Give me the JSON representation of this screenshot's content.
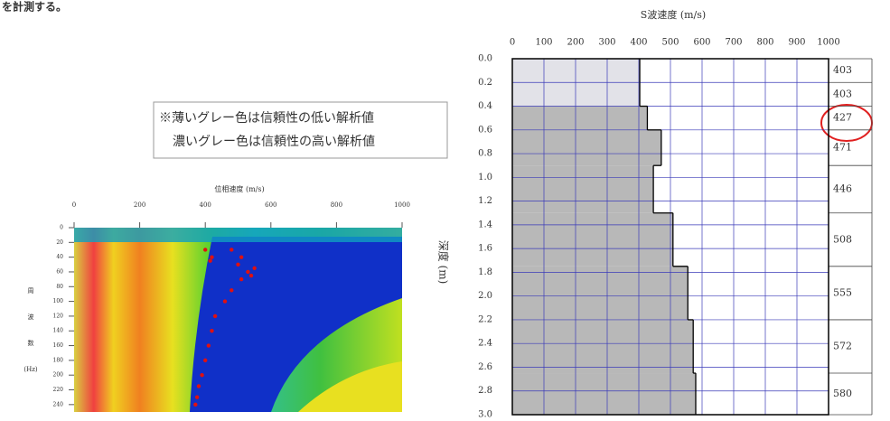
{
  "page": {
    "header_text": "を計測する。",
    "note": [
      "※薄いグレー色は信頼性の低い解析値",
      "濃いグレー色は信頼性の高い解析値"
    ]
  },
  "chart_data": [
    {
      "type": "scatter",
      "title": "位相速度 (m/s)",
      "ylabel": [
        "周",
        "波",
        "数",
        "(Hz)"
      ],
      "x": [
        400,
        415,
        420,
        480,
        510,
        500,
        550,
        530,
        540,
        510,
        480,
        460,
        430,
        420,
        410,
        400,
        390,
        380,
        375,
        370
      ],
      "values": [
        30,
        45,
        40,
        30,
        40,
        50,
        55,
        60,
        65,
        70,
        85,
        100,
        120,
        140,
        160,
        180,
        200,
        215,
        230,
        240
      ],
      "color": "#e01010",
      "xlim": [
        0,
        1000
      ],
      "xticks": [
        0,
        200,
        400,
        600,
        800,
        1000
      ],
      "ylim": [
        0,
        250
      ],
      "yticks": [
        0,
        20,
        40,
        60,
        80,
        100,
        120,
        140,
        160,
        180,
        200,
        220,
        240
      ]
    },
    {
      "type": "profile",
      "title": "S波速度 (m/s)",
      "ylabel": "深度 (m)",
      "depth_bounds": [
        0,
        0.2,
        0.4,
        0.6,
        0.9,
        1.3,
        1.75,
        2.2,
        2.65,
        3.0
      ],
      "values": [
        403,
        403,
        427,
        471,
        446,
        508,
        555,
        572,
        580
      ],
      "colors": [
        "#e2e2e8",
        "#e2e2e8",
        "#b8b8b8",
        "#b8b8b8",
        "#b8b8b8",
        "#b8b8b8",
        "#b8b8b8",
        "#b8b8b8",
        "#b8b8b8"
      ],
      "xlim": [
        0,
        1000
      ],
      "xticks": [
        0,
        100,
        200,
        300,
        400,
        500,
        600,
        700,
        800,
        900,
        1000
      ],
      "ylim": [
        0,
        3.0
      ],
      "yticks": [
        {
          "value": 0,
          "label": "0.0"
        },
        {
          "value": 0.2,
          "label": "0.2"
        },
        {
          "value": 0.4,
          "label": "0.4"
        },
        {
          "value": 0.6,
          "label": "0.6"
        },
        {
          "value": 0.8,
          "label": "0.8"
        },
        {
          "value": 1.0,
          "label": "1.0"
        },
        {
          "value": 1.2,
          "label": "1.2"
        },
        {
          "value": 1.4,
          "label": "1.4"
        },
        {
          "value": 1.6,
          "label": "1.6"
        },
        {
          "value": 1.8,
          "label": "1.8"
        },
        {
          "value": 2.0,
          "label": "2.0"
        },
        {
          "value": 2.2,
          "label": "2.2"
        },
        {
          "value": 2.4,
          "label": "2.4"
        },
        {
          "value": 2.6,
          "label": "2.6"
        },
        {
          "value": 2.8,
          "label": "2.8"
        },
        {
          "value": 3.0,
          "label": "3.0"
        }
      ],
      "grid": true,
      "grid_color": "#3a3ab8"
    }
  ]
}
